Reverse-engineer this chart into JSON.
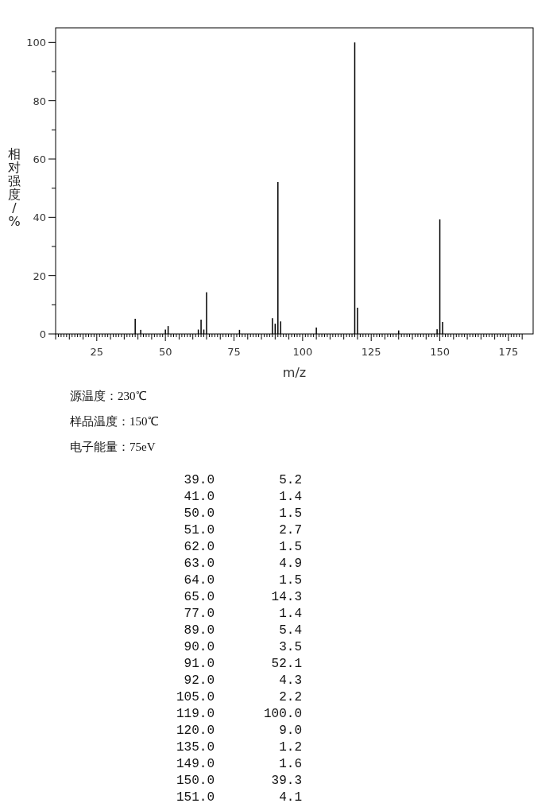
{
  "chart_data": [
    {
      "type": "bar",
      "xlabel": "m/z",
      "ylabel": "相对强度/%",
      "x": [
        39,
        41,
        50,
        51,
        62,
        63,
        64,
        65,
        77,
        89,
        90,
        91,
        92,
        105,
        119,
        120,
        135,
        149,
        150,
        151
      ],
      "values": [
        5.2,
        1.4,
        1.5,
        2.7,
        1.5,
        4.9,
        1.5,
        14.3,
        1.4,
        5.4,
        3.5,
        52.1,
        4.3,
        2.2,
        100.0,
        9.0,
        1.2,
        1.6,
        39.3,
        4.1
      ],
      "color": "#000000",
      "xlim": [
        10,
        184
      ],
      "ylim": [
        0,
        105
      ],
      "xticks": [
        {
          "value": 10,
          "label": null
        },
        {
          "value": 11,
          "label": null
        },
        {
          "value": 12,
          "label": null
        },
        {
          "value": 13,
          "label": null
        },
        {
          "value": 14,
          "label": null
        },
        {
          "value": 15,
          "label": null
        },
        {
          "value": 16,
          "label": null
        },
        {
          "value": 17,
          "label": null
        },
        {
          "value": 18,
          "label": null
        },
        {
          "value": 19,
          "label": null
        },
        {
          "value": 20,
          "label": null
        },
        {
          "value": 21,
          "label": null
        },
        {
          "value": 22,
          "label": null
        },
        {
          "value": 23,
          "label": null
        },
        {
          "value": 24,
          "label": null
        },
        25,
        {
          "value": 26,
          "label": null
        },
        {
          "value": 27,
          "label": null
        },
        {
          "value": 28,
          "label": null
        },
        {
          "value": 29,
          "label": null
        },
        {
          "value": 30,
          "label": null
        },
        {
          "value": 31,
          "label": null
        },
        {
          "value": 32,
          "label": null
        },
        {
          "value": 33,
          "label": null
        },
        {
          "value": 34,
          "label": null
        },
        {
          "value": 35,
          "label": null
        },
        {
          "value": 36,
          "label": null
        },
        {
          "value": 37,
          "label": null
        },
        {
          "value": 38,
          "label": null
        },
        {
          "value": 39,
          "label": null
        },
        {
          "value": 40,
          "label": null
        },
        {
          "value": 41,
          "label": null
        },
        {
          "value": 42,
          "label": null
        },
        {
          "value": 43,
          "label": null
        },
        {
          "value": 44,
          "label": null
        },
        {
          "value": 45,
          "label": null
        },
        {
          "value": 46,
          "label": null
        },
        {
          "value": 47,
          "label": null
        },
        {
          "value": 48,
          "label": null
        },
        {
          "value": 49,
          "label": null
        },
        50,
        {
          "value": 51,
          "label": null
        },
        {
          "value": 52,
          "label": null
        },
        {
          "value": 53,
          "label": null
        },
        {
          "value": 54,
          "label": null
        },
        {
          "value": 55,
          "label": null
        },
        {
          "value": 56,
          "label": null
        },
        {
          "value": 57,
          "label": null
        },
        {
          "value": 58,
          "label": null
        },
        {
          "value": 59,
          "label": null
        },
        {
          "value": 60,
          "label": null
        },
        {
          "value": 61,
          "label": null
        },
        {
          "value": 62,
          "label": null
        },
        {
          "value": 63,
          "label": null
        },
        {
          "value": 64,
          "label": null
        },
        {
          "value": 65,
          "label": null
        },
        {
          "value": 66,
          "label": null
        },
        {
          "value": 67,
          "label": null
        },
        {
          "value": 68,
          "label": null
        },
        {
          "value": 69,
          "label": null
        },
        {
          "value": 70,
          "label": null
        },
        {
          "value": 71,
          "label": null
        },
        {
          "value": 72,
          "label": null
        },
        {
          "value": 73,
          "label": null
        },
        {
          "value": 74,
          "label": null
        },
        75,
        {
          "value": 76,
          "label": null
        },
        {
          "value": 77,
          "label": null
        },
        {
          "value": 78,
          "label": null
        },
        {
          "value": 79,
          "label": null
        },
        {
          "value": 80,
          "label": null
        },
        {
          "value": 81,
          "label": null
        },
        {
          "value": 82,
          "label": null
        },
        {
          "value": 83,
          "label": null
        },
        {
          "value": 84,
          "label": null
        },
        {
          "value": 85,
          "label": null
        },
        {
          "value": 86,
          "label": null
        },
        {
          "value": 87,
          "label": null
        },
        {
          "value": 88,
          "label": null
        },
        {
          "value": 89,
          "label": null
        },
        {
          "value": 90,
          "label": null
        },
        {
          "value": 91,
          "label": null
        },
        {
          "value": 92,
          "label": null
        },
        {
          "value": 93,
          "label": null
        },
        {
          "value": 94,
          "label": null
        },
        {
          "value": 95,
          "label": null
        },
        {
          "value": 96,
          "label": null
        },
        {
          "value": 97,
          "label": null
        },
        {
          "value": 98,
          "label": null
        },
        {
          "value": 99,
          "label": null
        },
        100,
        {
          "value": 101,
          "label": null
        },
        {
          "value": 102,
          "label": null
        },
        {
          "value": 103,
          "label": null
        },
        {
          "value": 104,
          "label": null
        },
        {
          "value": 105,
          "label": null
        },
        {
          "value": 106,
          "label": null
        },
        {
          "value": 107,
          "label": null
        },
        {
          "value": 108,
          "label": null
        },
        {
          "value": 109,
          "label": null
        },
        {
          "value": 110,
          "label": null
        },
        {
          "value": 111,
          "label": null
        },
        {
          "value": 112,
          "label": null
        },
        {
          "value": 113,
          "label": null
        },
        {
          "value": 114,
          "label": null
        },
        {
          "value": 115,
          "label": null
        },
        {
          "value": 116,
          "label": null
        },
        {
          "value": 117,
          "label": null
        },
        {
          "value": 118,
          "label": null
        },
        {
          "value": 119,
          "label": null
        },
        {
          "value": 120,
          "label": null
        },
        {
          "value": 121,
          "label": null
        },
        {
          "value": 122,
          "label": null
        },
        {
          "value": 123,
          "label": null
        },
        {
          "value": 124,
          "label": null
        },
        125,
        {
          "value": 126,
          "label": null
        },
        {
          "value": 127,
          "label": null
        },
        {
          "value": 128,
          "label": null
        },
        {
          "value": 129,
          "label": null
        },
        {
          "value": 130,
          "label": null
        },
        {
          "value": 131,
          "label": null
        },
        {
          "value": 132,
          "label": null
        },
        {
          "value": 133,
          "label": null
        },
        {
          "value": 134,
          "label": null
        },
        {
          "value": 135,
          "label": null
        },
        {
          "value": 136,
          "label": null
        },
        {
          "value": 137,
          "label": null
        },
        {
          "value": 138,
          "label": null
        },
        {
          "value": 139,
          "label": null
        },
        {
          "value": 140,
          "label": null
        },
        {
          "value": 141,
          "label": null
        },
        {
          "value": 142,
          "label": null
        },
        {
          "value": 143,
          "label": null
        },
        {
          "value": 144,
          "label": null
        },
        {
          "value": 145,
          "label": null
        },
        {
          "value": 146,
          "label": null
        },
        {
          "value": 147,
          "label": null
        },
        {
          "value": 148,
          "label": null
        },
        {
          "value": 149,
          "label": null
        },
        150,
        {
          "value": 151,
          "label": null
        },
        {
          "value": 152,
          "label": null
        },
        {
          "value": 153,
          "label": null
        },
        {
          "value": 154,
          "label": null
        },
        {
          "value": 155,
          "label": null
        },
        {
          "value": 156,
          "label": null
        },
        {
          "value": 157,
          "label": null
        },
        {
          "value": 158,
          "label": null
        },
        {
          "value": 159,
          "label": null
        },
        {
          "value": 160,
          "label": null
        },
        {
          "value": 161,
          "label": null
        },
        {
          "value": 162,
          "label": null
        },
        {
          "value": 163,
          "label": null
        },
        {
          "value": 164,
          "label": null
        },
        {
          "value": 165,
          "label": null
        },
        {
          "value": 166,
          "label": null
        },
        {
          "value": 167,
          "label": null
        },
        {
          "value": 168,
          "label": null
        },
        {
          "value": 169,
          "label": null
        },
        {
          "value": 170,
          "label": null
        },
        {
          "value": 171,
          "label": null
        },
        {
          "value": 172,
          "label": null
        },
        {
          "value": 173,
          "label": null
        },
        {
          "value": 174,
          "label": null
        },
        175,
        {
          "value": 176,
          "label": null
        },
        {
          "value": 177,
          "label": null
        },
        {
          "value": 178,
          "label": null
        },
        {
          "value": 179,
          "label": null
        },
        {
          "value": 180,
          "label": null
        }
      ],
      "yticks": [
        0,
        {
          "value": 10,
          "label": null
        },
        20,
        {
          "value": 30,
          "label": null
        },
        40,
        {
          "value": 50,
          "label": null
        },
        60,
        {
          "value": 70,
          "label": null
        },
        80,
        {
          "value": 90,
          "label": null
        },
        100
      ],
      "annotations": [
        "源温度：230℃",
        "样品温度：150℃",
        "电子能量：75eV"
      ]
    },
    {
      "type": "other",
      "annotations": [
        "39.0",
        "5.2",
        "41.0",
        "1.4",
        "50.0",
        "1.5",
        "51.0",
        "2.7",
        "62.0",
        "1.5",
        "63.0",
        "4.9",
        "64.0",
        "1.5",
        "65.0",
        "14.3",
        "77.0",
        "1.4",
        "89.0",
        "5.4",
        "90.0",
        "3.5",
        "91.0",
        "52.1",
        "92.0",
        "4.3",
        "105.0",
        "2.2",
        "119.0",
        "100.0",
        "120.0",
        "9.0",
        "135.0",
        "1.2",
        "149.0",
        "1.6",
        "150.0",
        "39.3",
        "151.0",
        "4.1"
      ]
    }
  ]
}
